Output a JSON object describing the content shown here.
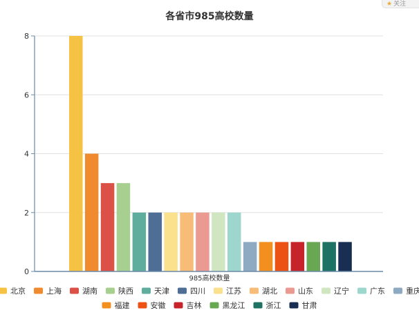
{
  "corner_badge": {
    "star_glyph": "★",
    "text": "关注"
  },
  "chart_data": {
    "type": "bar",
    "title": "各省市985高校数量",
    "xlabel": "985高校数量",
    "ylabel": "",
    "ylim": [
      0,
      8
    ],
    "yticks": [
      0,
      2,
      4,
      6,
      8
    ],
    "grid": true,
    "legend_position": "bottom",
    "series": [
      {
        "name": "北京",
        "value": 8,
        "color": "#f6c243"
      },
      {
        "name": "上海",
        "value": 4,
        "color": "#f08a2e"
      },
      {
        "name": "湖南",
        "value": 3,
        "color": "#dc5147"
      },
      {
        "name": "陕西",
        "value": 3,
        "color": "#a7cf8f"
      },
      {
        "name": "天津",
        "value": 2,
        "color": "#5fae9d"
      },
      {
        "name": "四川",
        "value": 2,
        "color": "#4e6e96"
      },
      {
        "name": "江苏",
        "value": 2,
        "color": "#fbe08d"
      },
      {
        "name": "湖北",
        "value": 2,
        "color": "#f7bd78"
      },
      {
        "name": "山东",
        "value": 2,
        "color": "#ea9a91"
      },
      {
        "name": "辽宁",
        "value": 2,
        "color": "#d0e6c1"
      },
      {
        "name": "广东",
        "value": 2,
        "color": "#9dd6cc"
      },
      {
        "name": "重庆",
        "value": 1,
        "color": "#8eaac3"
      },
      {
        "name": "福建",
        "value": 1,
        "color": "#f28f1e"
      },
      {
        "name": "安徽",
        "value": 1,
        "color": "#ec5214"
      },
      {
        "name": "吉林",
        "value": 1,
        "color": "#c6242a"
      },
      {
        "name": "黑龙江",
        "value": 1,
        "color": "#69a853"
      },
      {
        "name": "浙江",
        "value": 1,
        "color": "#1d7263"
      },
      {
        "name": "甘肃",
        "value": 1,
        "color": "#182e52"
      }
    ]
  }
}
